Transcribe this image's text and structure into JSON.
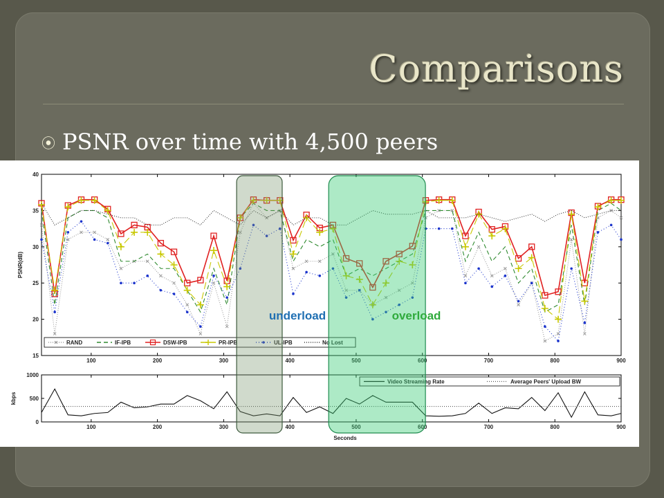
{
  "slide": {
    "title": "Comparisons",
    "bullet_text": "PSNR over time with 4,500 peers",
    "bullet_icon": "circled-dot-icon"
  },
  "annotations": {
    "underload_label": "underload",
    "overload_label": "overload",
    "underload_color": "#1f6fb2",
    "overload_color": "#2faa3c",
    "underload_region": [
      330,
      380
    ],
    "overload_region": [
      470,
      590
    ]
  },
  "chart_data": [
    {
      "type": "line",
      "ylabel": "PSNR(dB)",
      "xlim": [
        25,
        900
      ],
      "ylim": [
        15,
        40
      ],
      "xticks": [
        100,
        200,
        300,
        400,
        500,
        600,
        700,
        800,
        900
      ],
      "xtick_labels": [
        "100",
        "200",
        "300",
        "400",
        "500",
        "600",
        "700",
        "800",
        "900"
      ],
      "yticks": [
        15,
        20,
        25,
        30,
        35,
        40
      ],
      "grid": false,
      "legend_position": "bottom",
      "x": [
        25,
        45,
        65,
        85,
        105,
        125,
        145,
        165,
        185,
        205,
        225,
        245,
        265,
        285,
        305,
        325,
        345,
        365,
        385,
        405,
        425,
        445,
        465,
        485,
        505,
        525,
        545,
        565,
        585,
        605,
        625,
        645,
        665,
        685,
        705,
        725,
        745,
        765,
        785,
        805,
        825,
        845,
        865,
        885,
        900
      ],
      "series": [
        {
          "name": "RAND",
          "color": "#9a9a9a",
          "dash": "1,2",
          "marker": "x",
          "values": [
            33,
            18,
            31,
            32,
            32,
            31,
            27,
            28,
            28,
            26,
            25,
            22,
            18,
            25,
            19,
            32,
            36,
            34,
            35,
            27,
            28,
            28,
            29,
            24,
            24,
            22,
            23,
            24,
            25,
            34,
            35,
            35,
            26,
            30,
            26,
            27,
            22,
            25,
            17,
            18,
            31,
            18,
            34,
            35,
            34
          ]
        },
        {
          "name": "IF-IPB",
          "color": "#2f8a2f",
          "dash": "6,4",
          "marker": "none",
          "values": [
            35,
            22,
            34,
            35,
            35,
            34,
            28,
            28,
            29,
            27,
            27,
            24,
            21,
            27,
            22,
            34,
            36,
            35,
            35,
            28,
            31,
            30,
            31,
            26,
            27,
            26,
            27,
            28,
            29,
            35,
            35,
            35,
            28,
            32,
            28,
            30,
            25,
            27,
            21,
            22,
            33,
            22,
            35,
            36,
            35
          ]
        },
        {
          "name": "DSW-IPB",
          "color": "#e02020",
          "dash": "",
          "marker": "square",
          "values": [
            36,
            23.5,
            35.7,
            36.5,
            36.5,
            35.2,
            31.8,
            33,
            32.7,
            30.5,
            29.3,
            25,
            25.4,
            31.5,
            25.3,
            34,
            36.5,
            36.4,
            36.4,
            30.9,
            34.4,
            32.6,
            33,
            28.4,
            27.7,
            24.4,
            28,
            29,
            30.1,
            36.4,
            36.5,
            36.5,
            31.5,
            34.8,
            32.4,
            32.8,
            28.4,
            30,
            23.3,
            23.8,
            34.7,
            25,
            35.6,
            36.5,
            36.5
          ]
        },
        {
          "name": "PR-IPB",
          "color": "#c8c800",
          "dash": "10,5",
          "marker": "plus",
          "values": [
            35.8,
            24,
            35.5,
            36.4,
            36.4,
            35,
            30,
            32,
            32,
            29,
            27.5,
            24,
            22,
            29.5,
            24.5,
            34,
            36.4,
            36.4,
            36.4,
            29,
            34,
            32,
            32.5,
            26,
            25.5,
            22,
            25,
            28,
            27.5,
            36.2,
            36.4,
            36.4,
            30,
            34.5,
            31.5,
            32.5,
            27,
            28.5,
            21.5,
            20,
            34.5,
            22.5,
            35.5,
            36.4,
            36.4
          ]
        },
        {
          "name": "UL-IPB",
          "color": "#1a33cc",
          "dash": "1,3",
          "marker": "dot",
          "values": [
            31,
            21,
            32,
            33.5,
            31,
            30.5,
            25,
            25,
            26,
            24,
            23.5,
            21,
            19,
            26,
            23,
            27,
            33,
            31.5,
            32.5,
            23.5,
            26.5,
            26,
            27,
            23,
            24,
            20,
            21,
            22,
            23,
            32.5,
            32.5,
            32.5,
            25,
            27,
            24.5,
            26,
            22.5,
            25,
            19,
            17,
            27,
            19.5,
            32,
            33,
            31
          ]
        },
        {
          "name": "No Lost",
          "color": "#333333",
          "dash": "1,2",
          "marker": "none",
          "values": [
            36,
            33,
            34,
            35,
            35,
            34.5,
            34,
            34,
            33,
            33,
            34,
            34,
            33,
            35,
            34,
            33,
            35,
            34,
            35,
            33,
            34,
            34,
            33,
            33,
            34,
            35,
            34.5,
            34.5,
            34.5,
            35,
            34,
            34,
            34,
            34.5,
            34,
            33.5,
            34,
            34.5,
            33.5,
            34.5,
            35,
            34,
            34.5,
            35,
            35
          ]
        }
      ]
    },
    {
      "type": "line",
      "ylabel": "kbps",
      "xlabel": "Seconds",
      "xlim": [
        25,
        900
      ],
      "ylim": [
        0,
        1000
      ],
      "xticks": [
        100,
        200,
        300,
        400,
        500,
        600,
        700,
        800,
        900
      ],
      "xtick_labels": [
        "100",
        "200",
        "300",
        "400",
        "500",
        "600",
        "700",
        "800",
        "900"
      ],
      "yticks": [
        0,
        500,
        1000
      ],
      "legend_position": "top-right",
      "x": [
        25,
        45,
        65,
        85,
        105,
        125,
        145,
        165,
        185,
        205,
        225,
        245,
        265,
        285,
        305,
        325,
        345,
        365,
        385,
        405,
        425,
        445,
        465,
        485,
        505,
        525,
        545,
        565,
        585,
        605,
        625,
        645,
        665,
        685,
        705,
        725,
        745,
        765,
        785,
        805,
        825,
        845,
        865,
        885,
        900
      ],
      "series": [
        {
          "name": "Video Streaming Rate",
          "color": "#111111",
          "dash": "",
          "values": [
            200,
            700,
            150,
            130,
            180,
            200,
            420,
            300,
            320,
            380,
            380,
            560,
            450,
            280,
            640,
            220,
            130,
            170,
            130,
            520,
            200,
            320,
            180,
            500,
            380,
            560,
            420,
            420,
            420,
            130,
            120,
            130,
            180,
            400,
            180,
            300,
            280,
            520,
            240,
            620,
            100,
            640,
            150,
            130,
            180
          ]
        },
        {
          "name": "Average Peers' Upload BW",
          "color": "#555555",
          "dash": "1,2",
          "values": [
            330,
            330,
            330,
            330,
            330,
            330,
            330,
            330,
            330,
            330,
            330,
            330,
            330,
            330,
            330,
            330,
            330,
            330,
            330,
            330,
            330,
            330,
            330,
            330,
            330,
            330,
            330,
            330,
            330,
            330,
            330,
            330,
            330,
            330,
            330,
            330,
            330,
            330,
            330,
            330,
            330,
            330,
            330,
            330,
            330
          ]
        }
      ]
    }
  ]
}
